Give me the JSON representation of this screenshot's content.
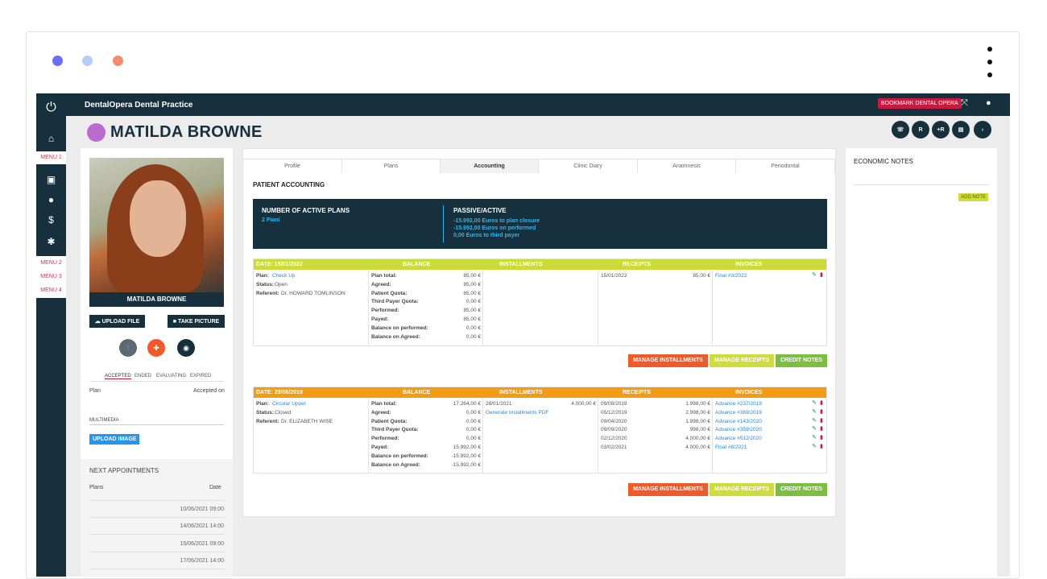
{
  "window": {
    "dot_colors": [
      "#6672ef",
      "#b6cdf8",
      "#f48b6b"
    ]
  },
  "topbar": {
    "brand": "DentalOpera Dental Practice",
    "bookmark": "BOOKMARK DENTAL OPERA"
  },
  "sidebar": {
    "menus": [
      "MENU 1",
      "MENU 2",
      "MENU 3",
      "MENU 4"
    ],
    "icons": [
      "power-icon",
      "home-icon",
      "calendar-icon",
      "user-icon",
      "dollar-icon",
      "gear-icon"
    ]
  },
  "patient": {
    "name": "MATILDA BROWNE",
    "photo_caption": "MATILDA BROWNE"
  },
  "header_buttons": [
    "☏",
    "R",
    "+R",
    "▤",
    "‹"
  ],
  "left": {
    "upload_file": "UPLOAD FILE",
    "take_picture": "TAKE PICTURE",
    "filters": [
      "ACCEPTED",
      "ENDED",
      "EVALUATING",
      "EXPIRED"
    ],
    "plan_label": "Plan",
    "accepted_on": "Accepted on",
    "multimedia": "MULTIMEDIA",
    "upload_image": "UPLOAD IMAGE",
    "next_appointments": "NEXT APPOINTMENTS",
    "plans_label": "Plans",
    "date_label": "Date",
    "appointments": [
      "10/06/2021 09:00",
      "14/06/2021 14:00",
      "15/06/2021 09:00",
      "17/06/2021 14:00"
    ]
  },
  "tabs": [
    "Profile",
    "Plans",
    "Accounting",
    "Clinic Diary",
    "Anamnesis",
    "Periodontal"
  ],
  "active_tab": "Accounting",
  "accounting": {
    "title": "PATIENT ACCOUNTING",
    "active_plans_label": "NUMBER OF ACTIVE PLANS",
    "active_plans_value": "2 Piani",
    "passive_label": "PASSIVE/ACTIVE",
    "passive_lines": [
      "-15.992,00 Euros to plan closure",
      "-15.992,00 Euros on performed",
      "0,00 Euros to third payer"
    ]
  },
  "col_headers": {
    "balance": "BALANCE",
    "installments": "INSTALLMENTS",
    "receipts": "RECEIPTS",
    "invoices": "INVOICES"
  },
  "plans": [
    {
      "date": "DATE: 15/01/2022",
      "color": "#cadb3a",
      "info": [
        [
          "Plan: ",
          "Check Up"
        ],
        [
          "Status: ",
          "Open"
        ],
        [
          "Referent: ",
          "Dr. HOWARD TOMLINSON"
        ]
      ],
      "balance": [
        [
          "Plan total:",
          "85,00 €"
        ],
        [
          "Agreed:",
          "85,00 €"
        ],
        [
          "Patient Quota:",
          "85,00 €"
        ],
        [
          "Third Payer Quota:",
          "0,00 €"
        ],
        [
          "Performed:",
          "85,00 €"
        ],
        [
          "Payed:",
          "85,00 €"
        ],
        [
          "Balance on performed:",
          "0,00 €"
        ],
        [
          "Balance on Agreed:",
          "0,00 €"
        ]
      ],
      "installments": [],
      "receipts": [
        [
          "15/01/2022",
          "85,00 €"
        ]
      ],
      "invoices": [
        "Final #3/2022"
      ]
    },
    {
      "date": "DATE: 29/06/2019",
      "color": "#f39b12",
      "info": [
        [
          "Plan: ",
          "Circular Upper"
        ],
        [
          "Status: ",
          "Closed"
        ],
        [
          "Referent: ",
          "Dr. ELIZABETH WISE"
        ]
      ],
      "balance": [
        [
          "Plan total:",
          "17.264,00 €"
        ],
        [
          "Agreed:",
          "0,00 €"
        ],
        [
          "Patient Quota:",
          "0,00 €"
        ],
        [
          "Third Payer Quota:",
          "0,00 €"
        ],
        [
          "Performed:",
          "0,00 €"
        ],
        [
          "Payed:",
          "15.992,00 €"
        ],
        [
          "Balance on performed:",
          "-15.992,00 €"
        ],
        [
          "Balance on Agreed:",
          "-15.992,00 €"
        ]
      ],
      "installments": [
        [
          "28/01/2021",
          "4.000,00 €"
        ]
      ],
      "installments_link": "Generate Installments PDF",
      "receipts": [
        [
          "09/08/2019",
          "1.998,00 €"
        ],
        [
          "05/12/2019",
          "2.998,00 €"
        ],
        [
          "09/04/2020",
          "1.998,00 €"
        ],
        [
          "09/09/2020",
          "998,00 €"
        ],
        [
          "02/12/2020",
          "4.000,00 €"
        ],
        [
          "03/02/2021",
          "4.000,00 €"
        ]
      ],
      "invoices": [
        "Advance #237/2019",
        "Advance #369/2019",
        "Advance #143/2020",
        "Advance #359/2020",
        "Advance #512/2020",
        "Final #8/2021"
      ]
    }
  ],
  "actions": {
    "installments": "MANAGE INSTALLMENTS",
    "receipts": "MANAGE RECEIPTS",
    "credit": "CREDIT NOTES"
  },
  "right": {
    "title": "ECONOMIC NOTES",
    "add_note": "ADD NOTE"
  }
}
